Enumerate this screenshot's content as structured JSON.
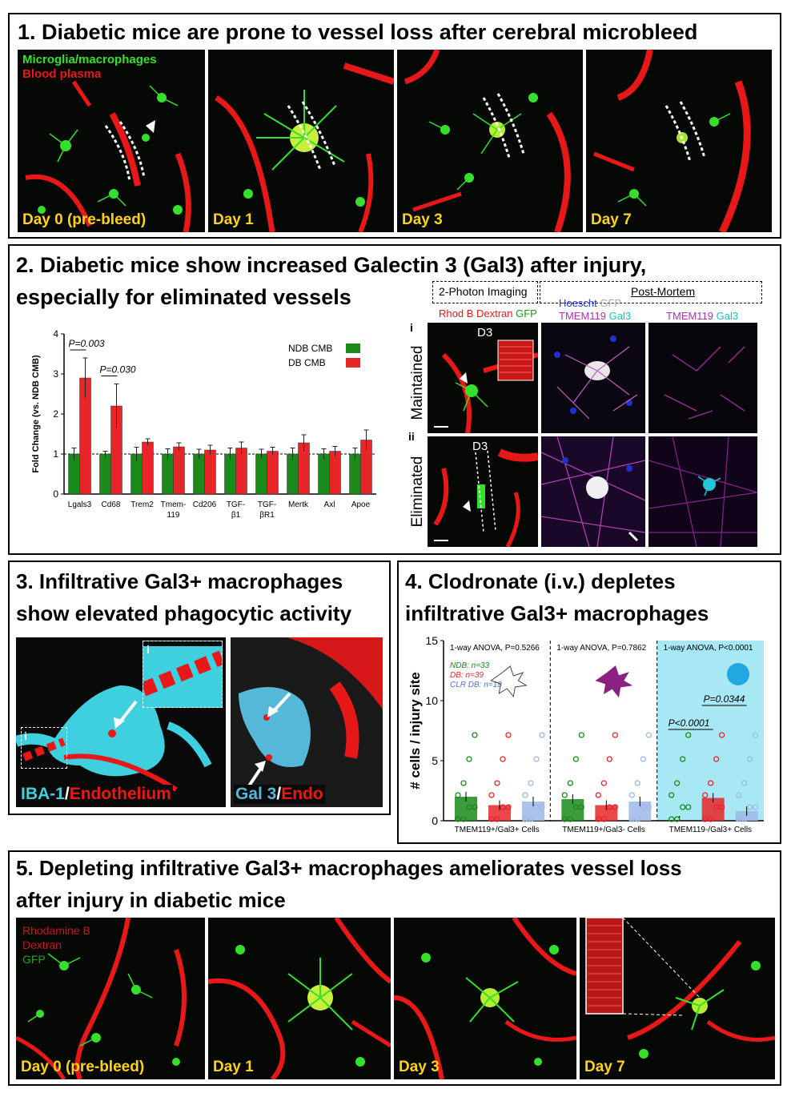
{
  "panel1": {
    "title": "1. Diabetic mice are prone to vessel loss after cerebral microbleed",
    "legend_green": "Microglia/macrophages",
    "legend_red": "Blood plasma",
    "days": [
      "Day 0 (pre-bleed)",
      "Day 1",
      "Day 3",
      "Day 7"
    ]
  },
  "panel2": {
    "title_line1": "2. Diabetic mice show increased Galectin 3 (Gal3) after injury,",
    "title_line2": "especially for eliminated vessels",
    "imaging_label": "2-Photon Imaging",
    "postmortem_label": "Post-Mortem",
    "stain_rhod": "Rhod B Dextran",
    "stain_gfp": "GFP",
    "stain_hoescht": "Hoescht",
    "stain_gfp2": "GFP",
    "stain_tmem": "TMEM119",
    "stain_gal3": "Gal3",
    "stain_tmem2": "TMEM119",
    "stain_gal3b": "Gal3",
    "row1_roman": "i",
    "row2_roman": "ii",
    "row1_label": "Maintained",
    "row2_label": "Eliminated",
    "d3_label": "D3",
    "d3_label2": "D3"
  },
  "chart_data": [
    {
      "type": "bar",
      "ylabel": "Fold Change (vs. NDB CMB)",
      "ylim": [
        0,
        4
      ],
      "yticks": [
        "0",
        "1",
        "2",
        "3",
        "4"
      ],
      "categories": [
        "Lgals3",
        "Cd68",
        "Trem2",
        "Tmem-119",
        "Cd206",
        "TGF-β1",
        "TGF-βR1",
        "Mertk",
        "Axl",
        "Apoe"
      ],
      "series": [
        {
          "name": "NDB CMB",
          "color": "#1a8a1a",
          "values": [
            1.0,
            1.0,
            1.0,
            1.0,
            1.0,
            1.0,
            1.0,
            1.0,
            1.0,
            1.0
          ],
          "errors": [
            0.15,
            0.07,
            0.17,
            0.13,
            0.12,
            0.15,
            0.12,
            0.15,
            0.13,
            0.15
          ]
        },
        {
          "name": "DB CMB",
          "color": "#e8262a",
          "values": [
            2.9,
            2.2,
            1.3,
            1.18,
            1.1,
            1.15,
            1.07,
            1.28,
            1.07,
            1.35
          ],
          "errors": [
            0.5,
            0.55,
            0.08,
            0.1,
            0.12,
            0.15,
            0.1,
            0.2,
            0.12,
            0.25
          ]
        }
      ],
      "annotations": [
        "P=0.003",
        "P=0.030"
      ],
      "reference_line": 1
    },
    {
      "type": "bar",
      "ylabel": "# cells / injury site",
      "ylim": [
        0,
        15
      ],
      "yticks": [
        "0",
        "5",
        "10",
        "15"
      ],
      "categories": [
        "TMEM119+/Gal3+ Cells",
        "TMEM119+/Gal3- Cells",
        "TMEM119-/Gal3+ Cells"
      ],
      "groups": [
        {
          "stat": "1-way ANOVA, P=0.5266",
          "values": [
            2.0,
            1.3,
            1.6
          ]
        },
        {
          "stat": "1-way ANOVA, P=0.7862",
          "values": [
            1.8,
            1.3,
            1.6
          ]
        },
        {
          "stat": "1-way ANOVA, P<0.0001",
          "values": [
            0.0,
            1.9,
            0.8
          ]
        }
      ],
      "series": [
        {
          "name": "NDB: n=33",
          "color": "#1a8a1a"
        },
        {
          "name": "DB: n=39",
          "color": "#e8262a"
        },
        {
          "name": "CLR DB: n=18",
          "color": "#9db8e8"
        }
      ],
      "annotations": [
        "P<0.0001",
        "P=0.0344"
      ]
    }
  ],
  "panel3": {
    "title_line1": "3. Infiltrative Gal3+ macrophages",
    "title_line2": "show elevated phagocytic activity",
    "inset_label": "i",
    "inset_label2": "i",
    "left_label_a": "IBA-1",
    "left_label_sep": "/",
    "left_label_b": "Endothelium",
    "right_label_a": "Gal 3",
    "right_label_sep": "/",
    "right_label_b": "Endo"
  },
  "panel4": {
    "title_line1": "4. Clodronate (i.v.) depletes",
    "title_line2": "infiltrative Gal3+ macrophages"
  },
  "panel5": {
    "title_line1": "5. Depleting infiltrative Gal3+ macrophages ameliorates vessel loss",
    "title_line2": "after injury in diabetic mice",
    "legend_1": "Rhodamine B",
    "legend_2": "Dextran",
    "legend_3": "GFP",
    "days": [
      "Day 0 (pre-bleed)",
      "Day 1",
      "Day 3",
      "Day 7"
    ]
  },
  "colors": {
    "green": "#35e02c",
    "red": "#e81818",
    "cyan": "#3fd0e0",
    "yellow": "#ffd21a",
    "magenta": "#c040c0",
    "blue": "#2030d0",
    "panel4_highlight": "#a8e8f4"
  }
}
